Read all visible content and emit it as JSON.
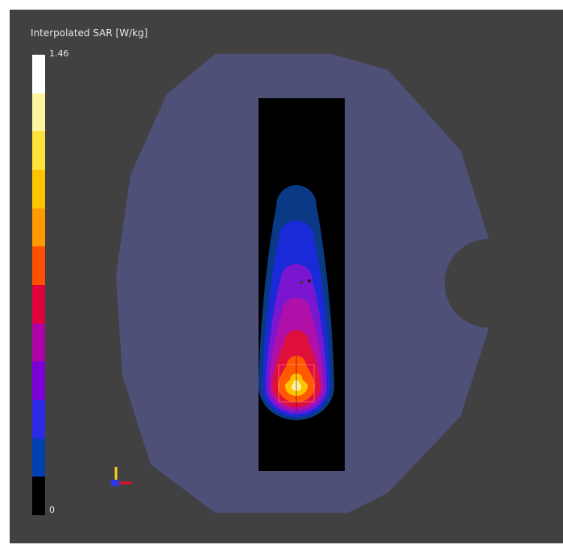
{
  "legend": {
    "title": "Interpolated SAR [W/kg]",
    "max_label": "1.46",
    "min_label": "0",
    "colors": [
      "#ffffff",
      "#fff4a0",
      "#ffe23c",
      "#ffc400",
      "#ff9a00",
      "#ff5000",
      "#e0003c",
      "#b000a8",
      "#7a00d6",
      "#2a2ae8",
      "#0040b0",
      "#000000"
    ]
  },
  "scene": {
    "phantom_color": "#4e5078",
    "background_color": "#414141",
    "slice_color": "#000000",
    "sar_levels": [
      {
        "level": "very-low",
        "color": "#0a3a86"
      },
      {
        "level": "low",
        "color": "#1a2ad8"
      },
      {
        "level": "mid-low",
        "color": "#7a16d0"
      },
      {
        "level": "mid",
        "color": "#b010a8"
      },
      {
        "level": "mid-high",
        "color": "#e0103c"
      },
      {
        "level": "high",
        "color": "#ff5a00"
      },
      {
        "level": "peak",
        "color": "#ffc400"
      },
      {
        "level": "max",
        "color": "#fff4a0"
      }
    ]
  },
  "axis_triad": {
    "x_color": "#e0102a",
    "y_color": "#ffd21a",
    "z_color": "#2a3ae8"
  }
}
